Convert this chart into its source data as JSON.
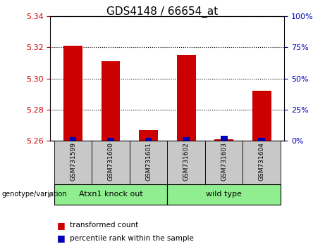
{
  "title": "GDS4148 / 66654_at",
  "samples": [
    "GSM731599",
    "GSM731600",
    "GSM731601",
    "GSM731602",
    "GSM731603",
    "GSM731604"
  ],
  "red_values": [
    5.321,
    5.311,
    5.267,
    5.315,
    5.261,
    5.292
  ],
  "blue_values": [
    3.0,
    2.5,
    2.0,
    3.0,
    4.0,
    2.5
  ],
  "baseline": 5.26,
  "ylim_left": [
    5.26,
    5.34
  ],
  "ylim_right": [
    0,
    100
  ],
  "yticks_left": [
    5.26,
    5.28,
    5.3,
    5.32,
    5.34
  ],
  "yticks_right": [
    0,
    25,
    50,
    75,
    100
  ],
  "group_labels": [
    "Atxn1 knock out",
    "wild type"
  ],
  "group_ranges": [
    [
      0,
      2
    ],
    [
      3,
      5
    ]
  ],
  "group_color": "#90EE90",
  "genotype_label": "genotype/variation",
  "legend_items": [
    {
      "label": "transformed count",
      "color": "#cc0000"
    },
    {
      "label": "percentile rank within the sample",
      "color": "#0000bb"
    }
  ],
  "red_color": "#cc0000",
  "blue_color": "#0000bb",
  "bar_width": 0.5,
  "blue_bar_width": 0.18,
  "background_color": "#ffffff",
  "tick_color_left": "#cc0000",
  "tick_color_right": "#0000bb",
  "xticklabel_bg": "#c8c8c8",
  "spine_color": "#000000"
}
